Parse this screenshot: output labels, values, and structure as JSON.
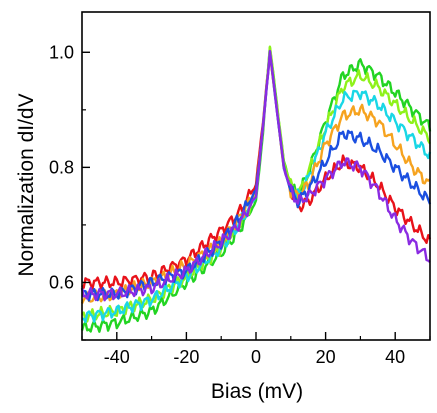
{
  "chart_data": {
    "type": "line",
    "xlabel": "Bias (mV)",
    "ylabel": "Normalization dI/dV",
    "xlim": [
      -50,
      50
    ],
    "ylim": [
      0.5,
      1.07
    ],
    "x_ticks": [
      -40,
      -20,
      0,
      20,
      40
    ],
    "x_tick_labels": [
      "-40",
      "-20",
      "0",
      "20",
      "40"
    ],
    "y_ticks": [
      0.6,
      0.8,
      1.0
    ],
    "y_tick_labels": [
      "0.6",
      "0.8",
      "1.0"
    ],
    "grid": false,
    "legend": "none",
    "series": [
      {
        "color": "#e8121a",
        "x": [
          -50,
          -40,
          -30,
          -20,
          -10,
          -5,
          0,
          2,
          4,
          6,
          8,
          10,
          12,
          15,
          20,
          25,
          30,
          35,
          40,
          45,
          50
        ],
        "values": [
          0.6,
          0.6,
          0.61,
          0.64,
          0.69,
          0.72,
          0.77,
          0.88,
          1.0,
          0.9,
          0.8,
          0.76,
          0.73,
          0.74,
          0.78,
          0.81,
          0.8,
          0.77,
          0.73,
          0.7,
          0.67
        ]
      },
      {
        "color": "#22d422",
        "x": [
          -50,
          -40,
          -30,
          -20,
          -10,
          -5,
          0,
          2,
          4,
          6,
          8,
          10,
          12,
          15,
          20,
          25,
          30,
          35,
          40,
          45,
          50
        ],
        "values": [
          0.52,
          0.53,
          0.55,
          0.6,
          0.65,
          0.69,
          0.74,
          0.86,
          1.01,
          0.91,
          0.81,
          0.77,
          0.75,
          0.79,
          0.88,
          0.96,
          0.98,
          0.96,
          0.93,
          0.9,
          0.87
        ]
      },
      {
        "color": "#8ef21a",
        "x": [
          -50,
          -40,
          -30,
          -20,
          -10,
          -5,
          0,
          2,
          4,
          6,
          8,
          10,
          12,
          15,
          20,
          25,
          30,
          35,
          40,
          45,
          50
        ],
        "values": [
          0.54,
          0.55,
          0.57,
          0.61,
          0.66,
          0.7,
          0.75,
          0.87,
          1.01,
          0.91,
          0.81,
          0.77,
          0.75,
          0.79,
          0.87,
          0.94,
          0.96,
          0.94,
          0.91,
          0.88,
          0.85
        ]
      },
      {
        "color": "#19d7e6",
        "x": [
          -50,
          -40,
          -30,
          -20,
          -10,
          -5,
          0,
          2,
          4,
          6,
          8,
          10,
          12,
          15,
          20,
          25,
          30,
          35,
          40,
          45,
          50
        ],
        "values": [
          0.54,
          0.55,
          0.57,
          0.61,
          0.66,
          0.7,
          0.75,
          0.87,
          1.0,
          0.9,
          0.8,
          0.76,
          0.75,
          0.78,
          0.86,
          0.92,
          0.93,
          0.91,
          0.88,
          0.85,
          0.82
        ]
      },
      {
        "color": "#f6a31f",
        "x": [
          -50,
          -40,
          -30,
          -20,
          -10,
          -5,
          0,
          2,
          4,
          6,
          8,
          10,
          12,
          15,
          20,
          25,
          30,
          35,
          40,
          45,
          50
        ],
        "values": [
          0.57,
          0.58,
          0.6,
          0.63,
          0.67,
          0.71,
          0.76,
          0.87,
          1.0,
          0.9,
          0.8,
          0.76,
          0.75,
          0.77,
          0.84,
          0.89,
          0.9,
          0.88,
          0.84,
          0.8,
          0.77
        ]
      },
      {
        "color": "#1b4fe0",
        "x": [
          -50,
          -40,
          -30,
          -20,
          -10,
          -5,
          0,
          2,
          4,
          6,
          8,
          10,
          12,
          15,
          20,
          25,
          30,
          35,
          40,
          45,
          50
        ],
        "values": [
          0.58,
          0.58,
          0.6,
          0.62,
          0.67,
          0.71,
          0.76,
          0.87,
          1.0,
          0.9,
          0.8,
          0.76,
          0.74,
          0.76,
          0.81,
          0.86,
          0.85,
          0.83,
          0.8,
          0.77,
          0.74
        ]
      },
      {
        "color": "#8a2be2",
        "x": [
          -50,
          -40,
          -30,
          -20,
          -10,
          -5,
          0,
          2,
          4,
          6,
          8,
          10,
          12,
          15,
          20,
          25,
          30,
          35,
          40,
          45,
          50
        ],
        "values": [
          0.58,
          0.58,
          0.59,
          0.62,
          0.67,
          0.7,
          0.75,
          0.87,
          1.0,
          0.9,
          0.8,
          0.76,
          0.74,
          0.75,
          0.78,
          0.81,
          0.8,
          0.76,
          0.71,
          0.67,
          0.64
        ]
      }
    ]
  }
}
